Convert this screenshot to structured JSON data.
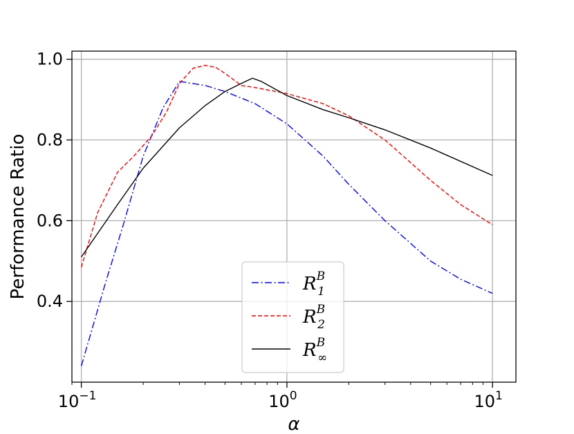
{
  "chart_data": {
    "type": "line",
    "title": "",
    "xlabel": "α",
    "ylabel": "Performance Ratio",
    "xscale": "log",
    "xlim": [
      0.09,
      13
    ],
    "ylim": [
      0.2,
      1.02
    ],
    "grid": true,
    "legend": "center-bottom",
    "x_ticks": [
      {
        "value": 0.1,
        "base": "10",
        "exp": "−1"
      },
      {
        "value": 1,
        "base": "10",
        "exp": "0"
      },
      {
        "value": 10,
        "base": "10",
        "exp": "1"
      }
    ],
    "y_ticks": [
      {
        "value": 0.4,
        "label": "0.4"
      },
      {
        "value": 0.6,
        "label": "0.6"
      },
      {
        "value": 0.8,
        "label": "0.8"
      },
      {
        "value": 1.0,
        "label": "1.0"
      }
    ],
    "series": [
      {
        "name": "R₁ᴮ",
        "label_main": "R",
        "label_sub": "1",
        "label_sup": "B",
        "color": "#0000ff",
        "dash": "dashdot",
        "x": [
          0.1,
          0.13,
          0.16,
          0.2,
          0.25,
          0.3,
          0.4,
          0.5,
          0.7,
          1.0,
          1.5,
          2.0,
          3.0,
          5.0,
          7.0,
          10.0
        ],
        "y": [
          0.24,
          0.44,
          0.59,
          0.76,
          0.88,
          0.945,
          0.935,
          0.92,
          0.89,
          0.84,
          0.76,
          0.69,
          0.6,
          0.5,
          0.455,
          0.42
        ]
      },
      {
        "name": "R₂ᴮ",
        "label_main": "R",
        "label_sub": "2",
        "label_sup": "B",
        "color": "#ff0000",
        "dash": "dashed",
        "x": [
          0.1,
          0.12,
          0.15,
          0.18,
          0.22,
          0.26,
          0.3,
          0.35,
          0.4,
          0.45,
          0.5,
          0.6,
          0.7,
          1.0,
          1.5,
          2.0,
          3.0,
          5.0,
          7.0,
          10.0
        ],
        "y": [
          0.485,
          0.62,
          0.72,
          0.76,
          0.81,
          0.87,
          0.94,
          0.978,
          0.985,
          0.98,
          0.965,
          0.935,
          0.93,
          0.915,
          0.89,
          0.86,
          0.8,
          0.7,
          0.64,
          0.59
        ]
      },
      {
        "name": "R∞ᴮ",
        "label_main": "R",
        "label_sub": "∞",
        "label_sup": "B",
        "color": "#000000",
        "dash": "solid",
        "x": [
          0.1,
          0.15,
          0.2,
          0.3,
          0.4,
          0.5,
          0.6,
          0.68,
          0.75,
          1.0,
          1.5,
          2.0,
          3.0,
          5.0,
          10.0
        ],
        "y": [
          0.51,
          0.64,
          0.73,
          0.83,
          0.885,
          0.92,
          0.94,
          0.953,
          0.945,
          0.91,
          0.875,
          0.855,
          0.825,
          0.78,
          0.712
        ]
      }
    ]
  }
}
